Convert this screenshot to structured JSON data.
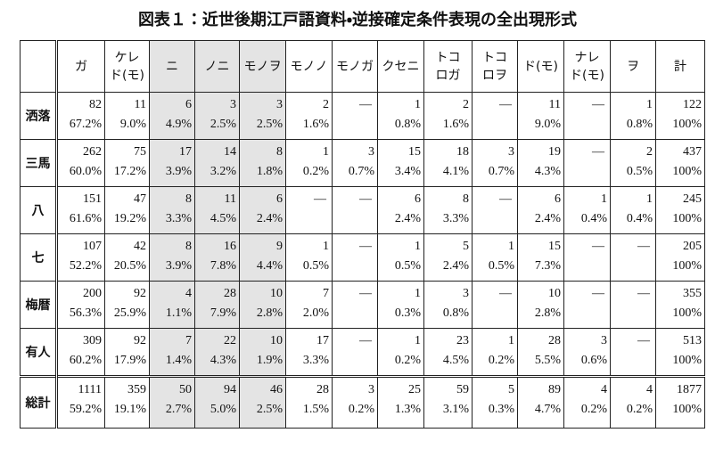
{
  "title": "図表１：近世後期江戸語資料・逆接確定条件表現の全出現形式",
  "table": {
    "header": [
      [],
      [
        "ガ"
      ],
      [
        "ケレ",
        "ド(モ)"
      ],
      [
        "ニ"
      ],
      [
        "ノニ"
      ],
      [
        "モノヲ"
      ],
      [
        "モノノ"
      ],
      [
        "モノガ"
      ],
      [
        "クセニ"
      ],
      [
        "トコ",
        "ロガ"
      ],
      [
        "トコ",
        "ロヲ"
      ],
      [
        "ド(モ)"
      ],
      [
        "ナレ",
        "ド(モ)"
      ],
      [
        "ヲ"
      ],
      [
        "計"
      ]
    ],
    "shaded_columns": [
      3,
      4,
      5
    ],
    "rows": [
      {
        "label": "洒落",
        "cells": [
          [
            82,
            "67.2%"
          ],
          [
            11,
            "9.0%"
          ],
          [
            6,
            "4.9%"
          ],
          [
            3,
            "2.5%"
          ],
          [
            3,
            "2.5%"
          ],
          [
            2,
            "1.6%"
          ],
          "—",
          [
            1,
            "0.8%"
          ],
          [
            2,
            "1.6%"
          ],
          "—",
          [
            11,
            "9.0%"
          ],
          "—",
          [
            1,
            "0.8%"
          ],
          [
            122,
            "100%"
          ]
        ]
      },
      {
        "label": "三馬",
        "cells": [
          [
            262,
            "60.0%"
          ],
          [
            75,
            "17.2%"
          ],
          [
            17,
            "3.9%"
          ],
          [
            14,
            "3.2%"
          ],
          [
            8,
            "1.8%"
          ],
          [
            1,
            "0.2%"
          ],
          [
            3,
            "0.7%"
          ],
          [
            15,
            "3.4%"
          ],
          [
            18,
            "4.1%"
          ],
          [
            3,
            "0.7%"
          ],
          [
            19,
            "4.3%"
          ],
          "—",
          [
            2,
            "0.5%"
          ],
          [
            437,
            "100%"
          ]
        ]
      },
      {
        "label": "八",
        "cells": [
          [
            151,
            "61.6%"
          ],
          [
            47,
            "19.2%"
          ],
          [
            8,
            "3.3%"
          ],
          [
            11,
            "4.5%"
          ],
          [
            6,
            "2.4%"
          ],
          "—",
          "—",
          [
            6,
            "2.4%"
          ],
          [
            8,
            "3.3%"
          ],
          "—",
          [
            6,
            "2.4%"
          ],
          [
            1,
            "0.4%"
          ],
          [
            1,
            "0.4%"
          ],
          [
            245,
            "100%"
          ]
        ]
      },
      {
        "label": "七",
        "cells": [
          [
            107,
            "52.2%"
          ],
          [
            42,
            "20.5%"
          ],
          [
            8,
            "3.9%"
          ],
          [
            16,
            "7.8%"
          ],
          [
            9,
            "4.4%"
          ],
          [
            1,
            "0.5%"
          ],
          "—",
          [
            1,
            "0.5%"
          ],
          [
            5,
            "2.4%"
          ],
          [
            1,
            "0.5%"
          ],
          [
            15,
            "7.3%"
          ],
          "—",
          "—",
          [
            205,
            "100%"
          ]
        ]
      },
      {
        "label": "梅暦",
        "cells": [
          [
            200,
            "56.3%"
          ],
          [
            92,
            "25.9%"
          ],
          [
            4,
            "1.1%"
          ],
          [
            28,
            "7.9%"
          ],
          [
            10,
            "2.8%"
          ],
          [
            7,
            "2.0%"
          ],
          "—",
          [
            1,
            "0.3%"
          ],
          [
            3,
            "0.8%"
          ],
          "—",
          [
            10,
            "2.8%"
          ],
          "—",
          "—",
          [
            355,
            "100%"
          ]
        ]
      },
      {
        "label": "有人",
        "cells": [
          [
            309,
            "60.2%"
          ],
          [
            92,
            "17.9%"
          ],
          [
            7,
            "1.4%"
          ],
          [
            22,
            "4.3%"
          ],
          [
            10,
            "1.9%"
          ],
          [
            17,
            "3.3%"
          ],
          "—",
          [
            1,
            "0.2%"
          ],
          [
            23,
            "4.5%"
          ],
          [
            1,
            "0.2%"
          ],
          [
            28,
            "5.5%"
          ],
          [
            3,
            "0.6%"
          ],
          "—",
          [
            513,
            "100%"
          ]
        ]
      },
      {
        "label": "総計",
        "cells": [
          [
            1111,
            "59.2%"
          ],
          [
            359,
            "19.1%"
          ],
          [
            50,
            "2.7%"
          ],
          [
            94,
            "5.0%"
          ],
          [
            46,
            "2.5%"
          ],
          [
            28,
            "1.5%"
          ],
          [
            3,
            "0.2%"
          ],
          [
            25,
            "1.3%"
          ],
          [
            59,
            "3.1%"
          ],
          [
            5,
            "0.3%"
          ],
          [
            89,
            "4.7%"
          ],
          [
            4,
            "0.2%"
          ],
          [
            4,
            "0.2%"
          ],
          [
            1877,
            "100%"
          ]
        ]
      }
    ]
  }
}
